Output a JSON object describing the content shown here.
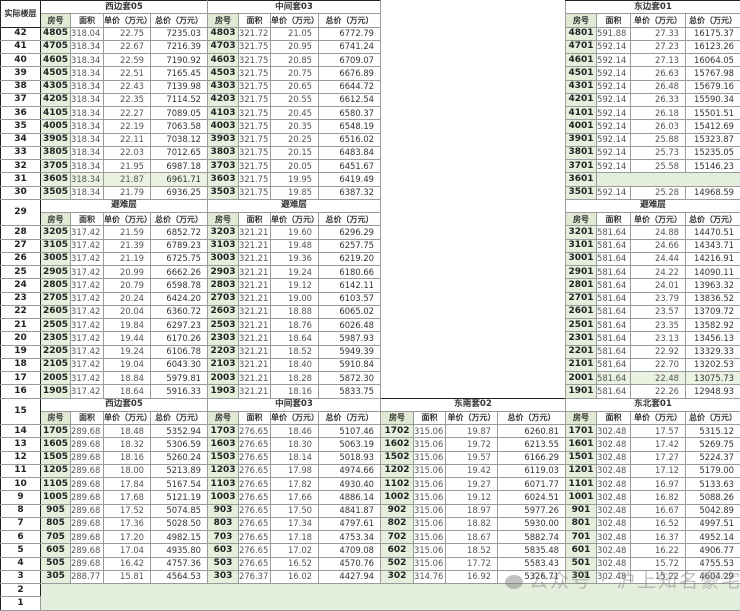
{
  "corner_label": "实际楼层",
  "col_headers": [
    "房号",
    "面积",
    "单价（万元）",
    "总价（万元）"
  ],
  "watermark": "公众号 · 沪上知名豪宅",
  "colors": {
    "room_fill": "#e6efdc",
    "empty_fill": "#e4eedc",
    "border": "#9a9a9a"
  },
  "sections": [
    {
      "floor": "",
      "groups": [
        "西边套05",
        "中间套03",
        null,
        "东边套01"
      ],
      "rows": [
        {
          "floor": "42",
          "units": [
            [
              "4805",
              "318.04",
              "22.75",
              "7235.03"
            ],
            [
              "4803",
              "321.72",
              "21.05",
              "6772.79"
            ],
            null,
            [
              "4801",
              "591.88",
              "27.33",
              "16175.37"
            ]
          ]
        },
        {
          "floor": "41",
          "units": [
            [
              "4705",
              "318.34",
              "22.67",
              "7216.39"
            ],
            [
              "4703",
              "321.75",
              "20.95",
              "6741.24"
            ],
            null,
            [
              "4701",
              "592.14",
              "27.23",
              "16123.26"
            ]
          ]
        },
        {
          "floor": "40",
          "units": [
            [
              "4605",
              "318.34",
              "22.59",
              "7190.92"
            ],
            [
              "4603",
              "321.75",
              "20.85",
              "6709.07"
            ],
            null,
            [
              "4601",
              "592.14",
              "27.13",
              "16064.05"
            ]
          ]
        },
        {
          "floor": "39",
          "units": [
            [
              "4505",
              "318.34",
              "22.51",
              "7165.45"
            ],
            [
              "4503",
              "321.75",
              "20.75",
              "6676.89"
            ],
            null,
            [
              "4501",
              "592.14",
              "26.63",
              "15767.98"
            ]
          ]
        },
        {
          "floor": "38",
          "units": [
            [
              "4305",
              "318.34",
              "22.43",
              "7139.98"
            ],
            [
              "4303",
              "321.75",
              "20.65",
              "6644.72"
            ],
            null,
            [
              "4301",
              "592.14",
              "26.48",
              "15679.16"
            ]
          ]
        },
        {
          "floor": "37",
          "units": [
            [
              "4205",
              "318.34",
              "22.35",
              "7114.52"
            ],
            [
              "4203",
              "321.75",
              "20.55",
              "6612.54"
            ],
            null,
            [
              "4201",
              "592.14",
              "26.33",
              "15590.34"
            ]
          ]
        },
        {
          "floor": "36",
          "units": [
            [
              "4105",
              "318.34",
              "22.27",
              "7089.05"
            ],
            [
              "4103",
              "321.75",
              "20.45",
              "6580.37"
            ],
            null,
            [
              "4101",
              "592.14",
              "26.18",
              "15501.51"
            ]
          ]
        },
        {
          "floor": "35",
          "units": [
            [
              "4005",
              "318.34",
              "22.19",
              "7063.58"
            ],
            [
              "4003",
              "321.75",
              "20.35",
              "6548.19"
            ],
            null,
            [
              "4001",
              "592.14",
              "26.03",
              "15412.69"
            ]
          ]
        },
        {
          "floor": "34",
          "units": [
            [
              "3905",
              "318.34",
              "22.11",
              "7038.12"
            ],
            [
              "3903",
              "321.75",
              "20.25",
              "6516.02"
            ],
            null,
            [
              "3901",
              "592.14",
              "25.88",
              "15323.87"
            ]
          ]
        },
        {
          "floor": "33",
          "units": [
            [
              "3805",
              "318.34",
              "22.03",
              "7012.65"
            ],
            [
              "3803",
              "321.75",
              "20.15",
              "6483.84"
            ],
            null,
            [
              "3801",
              "592.14",
              "25.73",
              "15235.05"
            ]
          ]
        },
        {
          "floor": "32",
          "units": [
            [
              "3705",
              "318.34",
              "21.95",
              "6987.18"
            ],
            [
              "3703",
              "321.75",
              "20.05",
              "6451.67"
            ],
            null,
            [
              "3701",
              "592.14",
              "25.58",
              "15146.23"
            ]
          ]
        },
        {
          "floor": "31",
          "units": [
            [
              "3605",
              "318.34",
              "21.87",
              "6961.71"
            ],
            [
              "3603",
              "321.75",
              "19.95",
              "6419.49"
            ],
            null,
            [
              "3601"
            ]
          ]
        },
        {
          "floor": "30",
          "units": [
            [
              "3505",
              "318.34",
              "21.79",
              "6936.25"
            ],
            [
              "3503",
              "321.75",
              "19.85",
              "6387.32"
            ],
            null,
            [
              "3501",
              "592.14",
              "25.28",
              "14968.59"
            ]
          ]
        }
      ]
    },
    {
      "floor": "29",
      "groups": [
        "避难层",
        "避难层",
        null,
        "避难层"
      ],
      "rows": [
        {
          "floor": "28",
          "units": [
            [
              "3205",
              "317.42",
              "21.59",
              "6852.72"
            ],
            [
              "3203",
              "321.21",
              "19.60",
              "6296.29"
            ],
            null,
            [
              "3201",
              "581.64",
              "24.88",
              "14470.51"
            ]
          ]
        },
        {
          "floor": "27",
          "units": [
            [
              "3105",
              "317.42",
              "21.39",
              "6789.23"
            ],
            [
              "3103",
              "321.21",
              "19.48",
              "6257.75"
            ],
            null,
            [
              "3101",
              "581.64",
              "24.66",
              "14343.71"
            ]
          ]
        },
        {
          "floor": "26",
          "units": [
            [
              "3005",
              "317.42",
              "21.19",
              "6725.75"
            ],
            [
              "3003",
              "321.21",
              "19.36",
              "6219.20"
            ],
            null,
            [
              "3001",
              "581.64",
              "24.44",
              "14216.91"
            ]
          ]
        },
        {
          "floor": "25",
          "units": [
            [
              "2905",
              "317.42",
              "20.99",
              "6662.26"
            ],
            [
              "2903",
              "321.21",
              "19.24",
              "6180.66"
            ],
            null,
            [
              "2901",
              "581.64",
              "24.22",
              "14090.11"
            ]
          ]
        },
        {
          "floor": "24",
          "units": [
            [
              "2805",
              "317.42",
              "20.79",
              "6598.78"
            ],
            [
              "2803",
              "321.21",
              "19.12",
              "6142.11"
            ],
            null,
            [
              "2801",
              "581.64",
              "24.01",
              "13963.32"
            ]
          ]
        },
        {
          "floor": "23",
          "units": [
            [
              "2705",
              "317.42",
              "20.24",
              "6424.20"
            ],
            [
              "2703",
              "321.21",
              "19.00",
              "6103.57"
            ],
            null,
            [
              "2701",
              "581.64",
              "23.79",
              "13836.52"
            ]
          ]
        },
        {
          "floor": "22",
          "units": [
            [
              "2605",
              "317.42",
              "20.04",
              "6360.72"
            ],
            [
              "2603",
              "321.21",
              "18.88",
              "6065.02"
            ],
            null,
            [
              "2601",
              "581.64",
              "23.57",
              "13709.72"
            ]
          ]
        },
        {
          "floor": "21",
          "units": [
            [
              "2505",
              "317.42",
              "19.84",
              "6297.23"
            ],
            [
              "2503",
              "321.21",
              "18.76",
              "6026.48"
            ],
            null,
            [
              "2501",
              "581.64",
              "23.35",
              "13582.92"
            ]
          ]
        },
        {
          "floor": "20",
          "units": [
            [
              "2305",
              "317.42",
              "19.44",
              "6170.26"
            ],
            [
              "2303",
              "321.21",
              "18.64",
              "5987.93"
            ],
            null,
            [
              "2301",
              "581.64",
              "23.13",
              "13456.13"
            ]
          ]
        },
        {
          "floor": "19",
          "units": [
            [
              "2205",
              "317.42",
              "19.24",
              "6106.78"
            ],
            [
              "2203",
              "321.21",
              "18.52",
              "5949.39"
            ],
            null,
            [
              "2201",
              "581.64",
              "22.92",
              "13329.33"
            ]
          ]
        },
        {
          "floor": "18",
          "units": [
            [
              "2105",
              "317.42",
              "19.04",
              "6043.30"
            ],
            [
              "2103",
              "321.21",
              "18.40",
              "5910.84"
            ],
            null,
            [
              "2101",
              "581.64",
              "22.70",
              "13202.53"
            ]
          ]
        },
        {
          "floor": "17",
          "units": [
            [
              "2005",
              "317.42",
              "18.84",
              "5979.81"
            ],
            [
              "2003",
              "321.21",
              "18.28",
              "5872.30"
            ],
            null,
            [
              "2001",
              "581.64",
              "22.48",
              "13075.73"
            ]
          ]
        },
        {
          "floor": "16",
          "units": [
            [
              "1905",
              "317.42",
              "18.64",
              "5916.33"
            ],
            [
              "1903",
              "321.21",
              "18.16",
              "5833.75"
            ],
            null,
            [
              "1901",
              "581.64",
              "22.26",
              "12948.93"
            ]
          ]
        }
      ]
    },
    {
      "floor": "15",
      "groups": [
        "西边套05",
        "中间套03",
        "东南套02",
        "东北套01"
      ],
      "rows": [
        {
          "floor": "14",
          "units": [
            [
              "1705",
              "289.68",
              "18.48",
              "5352.94"
            ],
            [
              "1703",
              "276.65",
              "18.46",
              "5107.46"
            ],
            [
              "1702",
              "315.06",
              "19.87",
              "6260.81"
            ],
            [
              "1701",
              "302.48",
              "17.57",
              "5315.12"
            ]
          ]
        },
        {
          "floor": "13",
          "units": [
            [
              "1605",
              "289.68",
              "18.32",
              "5306.59"
            ],
            [
              "1603",
              "276.65",
              "18.30",
              "5063.19"
            ],
            [
              "1602",
              "315.06",
              "19.72",
              "6213.55"
            ],
            [
              "1601",
              "302.48",
              "17.42",
              "5269.75"
            ]
          ]
        },
        {
          "floor": "12",
          "units": [
            [
              "1505",
              "289.68",
              "18.16",
              "5260.24"
            ],
            [
              "1503",
              "276.65",
              "18.14",
              "5018.93"
            ],
            [
              "1502",
              "315.06",
              "19.57",
              "6166.29"
            ],
            [
              "1501",
              "302.48",
              "17.27",
              "5224.37"
            ]
          ]
        },
        {
          "floor": "11",
          "units": [
            [
              "1205",
              "289.68",
              "18.00",
              "5213.89"
            ],
            [
              "1203",
              "276.65",
              "17.98",
              "4974.66"
            ],
            [
              "1202",
              "315.06",
              "19.42",
              "6119.03"
            ],
            [
              "1201",
              "302.48",
              "17.12",
              "5179.00"
            ]
          ]
        },
        {
          "floor": "10",
          "units": [
            [
              "1105",
              "289.68",
              "17.84",
              "5167.54"
            ],
            [
              "1103",
              "276.65",
              "17.82",
              "4930.40"
            ],
            [
              "1102",
              "315.06",
              "19.27",
              "6071.77"
            ],
            [
              "1101",
              "302.48",
              "16.97",
              "5133.63"
            ]
          ]
        },
        {
          "floor": "9",
          "units": [
            [
              "1005",
              "289.68",
              "17.68",
              "5121.19"
            ],
            [
              "1003",
              "276.65",
              "17.66",
              "4886.14"
            ],
            [
              "1002",
              "315.06",
              "19.12",
              "6024.51"
            ],
            [
              "1001",
              "302.48",
              "16.82",
              "5088.26"
            ]
          ]
        },
        {
          "floor": "8",
          "units": [
            [
              "905",
              "289.68",
              "17.52",
              "5074.85"
            ],
            [
              "903",
              "276.65",
              "17.50",
              "4841.87"
            ],
            [
              "902",
              "315.06",
              "18.97",
              "5977.26"
            ],
            [
              "901",
              "302.48",
              "16.67",
              "5042.89"
            ]
          ]
        },
        {
          "floor": "7",
          "units": [
            [
              "805",
              "289.68",
              "17.36",
              "5028.50"
            ],
            [
              "803",
              "276.65",
              "17.34",
              "4797.61"
            ],
            [
              "802",
              "315.06",
              "18.82",
              "5930.00"
            ],
            [
              "801",
              "302.48",
              "16.52",
              "4997.51"
            ]
          ]
        },
        {
          "floor": "6",
          "units": [
            [
              "705",
              "289.68",
              "17.20",
              "4982.15"
            ],
            [
              "703",
              "276.65",
              "17.18",
              "4753.34"
            ],
            [
              "702",
              "315.06",
              "18.67",
              "5882.74"
            ],
            [
              "701",
              "302.48",
              "16.37",
              "4952.14"
            ]
          ]
        },
        {
          "floor": "5",
          "units": [
            [
              "605",
              "289.68",
              "17.04",
              "4935.80"
            ],
            [
              "603",
              "276.65",
              "17.02",
              "4709.08"
            ],
            [
              "602",
              "315.06",
              "18.52",
              "5835.48"
            ],
            [
              "601",
              "302.48",
              "16.22",
              "4906.77"
            ]
          ]
        },
        {
          "floor": "4",
          "units": [
            [
              "505",
              "289.68",
              "16.42",
              "4757.36"
            ],
            [
              "503",
              "276.65",
              "16.52",
              "4570.76"
            ],
            [
              "502",
              "315.06",
              "17.72",
              "5583.43"
            ],
            [
              "501",
              "302.48",
              "15.72",
              "4755.53"
            ]
          ]
        },
        {
          "floor": "3",
          "units": [
            [
              "305",
              "288.77",
              "15.81",
              "4564.53"
            ],
            [
              "303",
              "276.37",
              "16.02",
              "4427.94"
            ],
            [
              "302",
              "314.76",
              "16.92",
              "5326.71"
            ],
            [
              "301",
              "302.48",
              "15.22",
              "4604.29"
            ]
          ]
        }
      ],
      "empty_floors": [
        "2",
        "1"
      ]
    }
  ]
}
